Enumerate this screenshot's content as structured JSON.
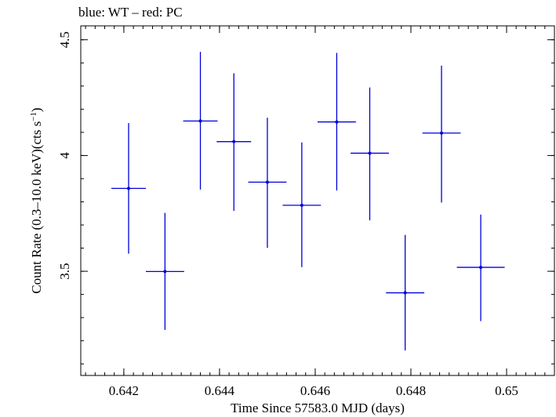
{
  "header": {
    "caption": "blue: WT – red: PC"
  },
  "chart_data": {
    "type": "scatter",
    "title": "",
    "xlabel": "Time Since 57583.0 MJD (days)",
    "ylabel_main": "Count Rate (0.3–10.0 keV)(cts s",
    "ylabel_sup": "−1",
    "ylabel_tail": ")",
    "xlim": [
      0.6411,
      0.651
    ],
    "ylim": [
      3.05,
      4.56
    ],
    "x_ticks": [
      {
        "value": 0.642,
        "label": "0.642"
      },
      {
        "value": 0.644,
        "label": "0.644"
      },
      {
        "value": 0.646,
        "label": "0.646"
      },
      {
        "value": 0.648,
        "label": "0.648"
      },
      {
        "value": 0.65,
        "label": "0.65"
      }
    ],
    "x_minor_step": 0.0002,
    "y_ticks": [
      {
        "value": 3.5,
        "label": "3.5"
      },
      {
        "value": 4.0,
        "label": "4"
      },
      {
        "value": 4.5,
        "label": "4.5"
      }
    ],
    "y_minor_step": 0.1,
    "grid": false,
    "series": [
      {
        "color": "#0000dd",
        "points": [
          {
            "x": 0.6421,
            "xerr": 0.00036,
            "y": 3.858,
            "ylo": 3.576,
            "yhi": 4.14
          },
          {
            "x": 0.64286,
            "xerr": 0.0004,
            "y": 3.499,
            "ylo": 3.247,
            "yhi": 3.752
          },
          {
            "x": 0.6436,
            "xerr": 0.00036,
            "y": 4.149,
            "ylo": 3.853,
            "yhi": 4.448
          },
          {
            "x": 0.6443,
            "xerr": 0.00036,
            "y": 4.06,
            "ylo": 3.761,
            "yhi": 4.355
          },
          {
            "x": 0.645,
            "xerr": 0.0004,
            "y": 3.885,
            "ylo": 3.601,
            "yhi": 4.163
          },
          {
            "x": 0.64572,
            "xerr": 0.0004,
            "y": 3.785,
            "ylo": 3.518,
            "yhi": 4.057
          },
          {
            "x": 0.64645,
            "xerr": 0.0004,
            "y": 4.145,
            "ylo": 3.849,
            "yhi": 4.443
          },
          {
            "x": 0.64714,
            "xerr": 0.0004,
            "y": 4.01,
            "ylo": 3.72,
            "yhi": 4.294
          },
          {
            "x": 0.64788,
            "xerr": 0.0004,
            "y": 3.407,
            "ylo": 3.158,
            "yhi": 3.657
          },
          {
            "x": 0.64864,
            "xerr": 0.0004,
            "y": 4.097,
            "ylo": 3.797,
            "yhi": 4.388
          },
          {
            "x": 0.64946,
            "xerr": 0.0005,
            "y": 3.517,
            "ylo": 3.285,
            "yhi": 3.745
          }
        ]
      }
    ]
  }
}
